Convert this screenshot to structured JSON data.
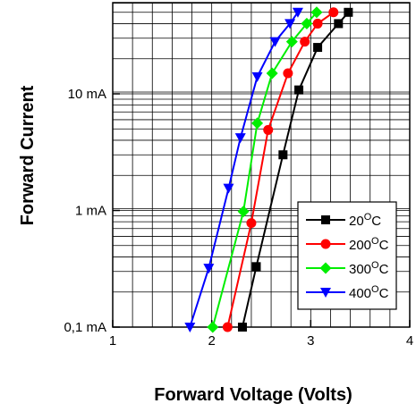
{
  "chart_data": {
    "type": "line",
    "title": "",
    "xlabel": "Forward Voltage (Volts)",
    "ylabel": "Forward Current",
    "xlim": [
      1,
      4
    ],
    "ylim": [
      0.1,
      50
    ],
    "y_scale": "log",
    "grid": true,
    "legend_position": "bottom-right",
    "x_ticks": [
      {
        "value": 1,
        "label": "1"
      },
      {
        "value": 2,
        "label": "2"
      },
      {
        "value": 3,
        "label": "3"
      },
      {
        "value": 4,
        "label": "4"
      }
    ],
    "y_ticks": [
      {
        "value": 0.1,
        "label": "0,1 mA"
      },
      {
        "value": 1,
        "label": "1 mA"
      },
      {
        "value": 10,
        "label": "10 mA"
      }
    ],
    "series": [
      {
        "name": "20°C",
        "name_base": "20",
        "name_unit": "C",
        "color": "#000000",
        "marker": "square",
        "x": [
          2.31,
          2.45,
          2.72,
          2.88,
          3.07,
          3.28,
          3.38
        ],
        "y": [
          0.1,
          0.33,
          3.0,
          10.8,
          25,
          40,
          50
        ]
      },
      {
        "name": "200°C",
        "name_base": "200",
        "name_unit": "C",
        "color": "#ff0000",
        "marker": "circle",
        "x": [
          2.16,
          2.4,
          2.57,
          2.77,
          2.94,
          3.07,
          3.23
        ],
        "y": [
          0.1,
          0.78,
          4.9,
          15,
          28,
          40,
          50
        ]
      },
      {
        "name": "300°C",
        "name_base": "300",
        "name_unit": "C",
        "color": "#00ee00",
        "marker": "diamond",
        "x": [
          2.01,
          2.32,
          2.46,
          2.61,
          2.81,
          2.96,
          3.06
        ],
        "y": [
          0.1,
          0.98,
          5.6,
          15,
          28,
          40,
          50
        ]
      },
      {
        "name": "400°C",
        "name_base": "400",
        "name_unit": "C",
        "color": "#0000ff",
        "marker": "triangle-down",
        "x": [
          1.78,
          1.97,
          2.17,
          2.29,
          2.46,
          2.64,
          2.79,
          2.87
        ],
        "y": [
          0.1,
          0.32,
          1.55,
          4.2,
          14,
          28,
          40,
          50
        ]
      }
    ]
  }
}
